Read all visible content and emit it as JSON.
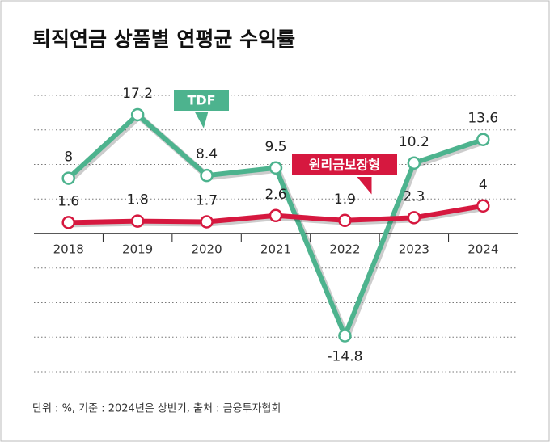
{
  "chart_data": {
    "type": "line",
    "title": "퇴직연금 상품별 연평균 수익률",
    "note": "단위 : %, 기준 : 2024년은 상반기, 출처 : 금융투자협회",
    "categories": [
      "2018",
      "2019",
      "2020",
      "2021",
      "2022",
      "2023",
      "2024"
    ],
    "series": [
      {
        "name": "TDF",
        "color": "#4db38e",
        "values": [
          8,
          17.2,
          8.4,
          9.5,
          -14.8,
          10.2,
          13.6
        ]
      },
      {
        "name": "원리금보장형",
        "color": "#d6183f",
        "values": [
          1.6,
          1.8,
          1.7,
          2.6,
          1.9,
          2.3,
          4
        ]
      }
    ],
    "ylim": [
      -20,
      20
    ],
    "yticks": [
      -20,
      -15,
      -10,
      -5,
      0,
      5,
      10,
      15,
      20
    ],
    "grid": true
  }
}
